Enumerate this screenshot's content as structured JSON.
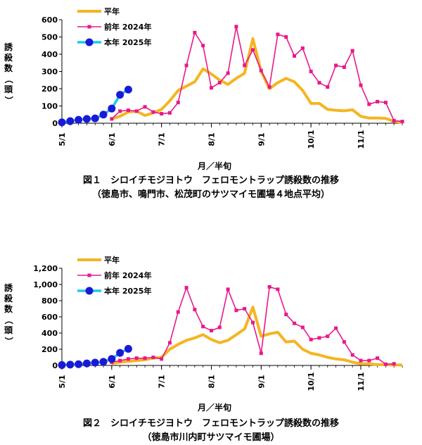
{
  "chart_data": [
    {
      "type": "line",
      "ylabel": "誘殺数（頭）",
      "xlabel": "月／半旬",
      "ylim": [
        0,
        600
      ],
      "yticks": [
        0,
        100,
        200,
        300,
        400,
        500,
        600
      ],
      "ytick_labels": [
        "0",
        "100",
        "200",
        "300",
        "400",
        "500",
        "600"
      ],
      "x_ticks": [
        {
          "label": "5/1",
          "index": 0
        },
        {
          "label": "6/1",
          "index": 6
        },
        {
          "label": "7/1",
          "index": 12
        },
        {
          "label": "8/1",
          "index": 18
        },
        {
          "label": "9/1",
          "index": 24
        },
        {
          "label": "10/1",
          "index": 30
        },
        {
          "label": "11/1",
          "index": 36
        }
      ],
      "n_points": 42,
      "legend": "top-left",
      "series": [
        {
          "name": "平年",
          "color": "#f5b520",
          "marker": "none",
          "values": [
            null,
            null,
            null,
            null,
            null,
            null,
            25,
            40,
            65,
            70,
            45,
            60,
            80,
            130,
            190,
            215,
            240,
            315,
            285,
            250,
            225,
            260,
            290,
            490,
            300,
            200,
            235,
            260,
            240,
            190,
            115,
            115,
            80,
            75,
            72,
            78,
            40,
            30,
            30,
            28,
            10,
            5
          ]
        },
        {
          "name": "前年 2024年",
          "color": "#e8198b",
          "marker": "square",
          "values": [
            null,
            null,
            null,
            null,
            null,
            null,
            25,
            70,
            75,
            70,
            95,
            65,
            55,
            60,
            120,
            335,
            525,
            450,
            205,
            235,
            290,
            560,
            335,
            425,
            305,
            210,
            515,
            500,
            390,
            435,
            300,
            235,
            210,
            335,
            325,
            420,
            220,
            110,
            125,
            120,
            15,
            10
          ]
        },
        {
          "name": "本年 2025年",
          "color": "#1ec8f0",
          "marker": "circle",
          "markerColor": "#1a1ad6",
          "values": [
            5,
            12,
            20,
            25,
            28,
            50,
            85,
            165,
            195
          ]
        }
      ]
    },
    {
      "type": "line",
      "ylabel": "誘殺数（頭）",
      "xlabel": "月／半旬",
      "ylim": [
        0,
        1200
      ],
      "yticks": [
        0,
        200,
        400,
        600,
        800,
        1000,
        1200
      ],
      "ytick_labels": [
        "0",
        "200",
        "400",
        "600",
        "800",
        "1,000",
        "1,200"
      ],
      "x_ticks": [
        {
          "label": "5/1",
          "index": 0
        },
        {
          "label": "6/1",
          "index": 6
        },
        {
          "label": "7/1",
          "index": 12
        },
        {
          "label": "8/1",
          "index": 18
        },
        {
          "label": "9/1",
          "index": 24
        },
        {
          "label": "10/1",
          "index": 30
        },
        {
          "label": "11/1",
          "index": 36
        }
      ],
      "n_points": 42,
      "legend": "top-left",
      "series": [
        {
          "name": "平年",
          "color": "#f5b520",
          "marker": "none",
          "values": [
            null,
            null,
            null,
            null,
            null,
            null,
            25,
            40,
            50,
            60,
            70,
            90,
            100,
            200,
            260,
            310,
            340,
            380,
            320,
            280,
            310,
            380,
            450,
            720,
            360,
            390,
            410,
            290,
            300,
            200,
            150,
            130,
            100,
            80,
            70,
            40,
            20,
            20,
            10,
            10,
            5,
            5
          ]
        },
        {
          "name": "前年 2024年",
          "color": "#e8198b",
          "marker": "square",
          "values": [
            null,
            null,
            null,
            null,
            null,
            null,
            40,
            60,
            80,
            90,
            90,
            100,
            80,
            280,
            660,
            960,
            690,
            480,
            430,
            470,
            940,
            680,
            700,
            530,
            150,
            970,
            940,
            630,
            520,
            470,
            320,
            340,
            360,
            460,
            290,
            130,
            60,
            60,
            90,
            15,
            20,
            null
          ]
        },
        {
          "name": "本年 2025年",
          "color": "#1ec8f0",
          "marker": "circle",
          "markerColor": "#1a1ad6",
          "values": [
            5,
            10,
            15,
            25,
            35,
            45,
            80,
            155,
            205
          ]
        }
      ]
    }
  ],
  "captions": {
    "fig1_line1": "図１　シロイチモジヨトウ　フェロモントラップ誘殺数の推移",
    "fig1_line2": "（徳島市、鳴門市、松茂町のサツマイモ圃場４地点平均）",
    "fig2_line1": "図２　シロイチモジヨトウ　フェロモントラップ誘殺数の推移",
    "fig2_line2": "（徳島市川内町サツマイモ圃場）"
  }
}
